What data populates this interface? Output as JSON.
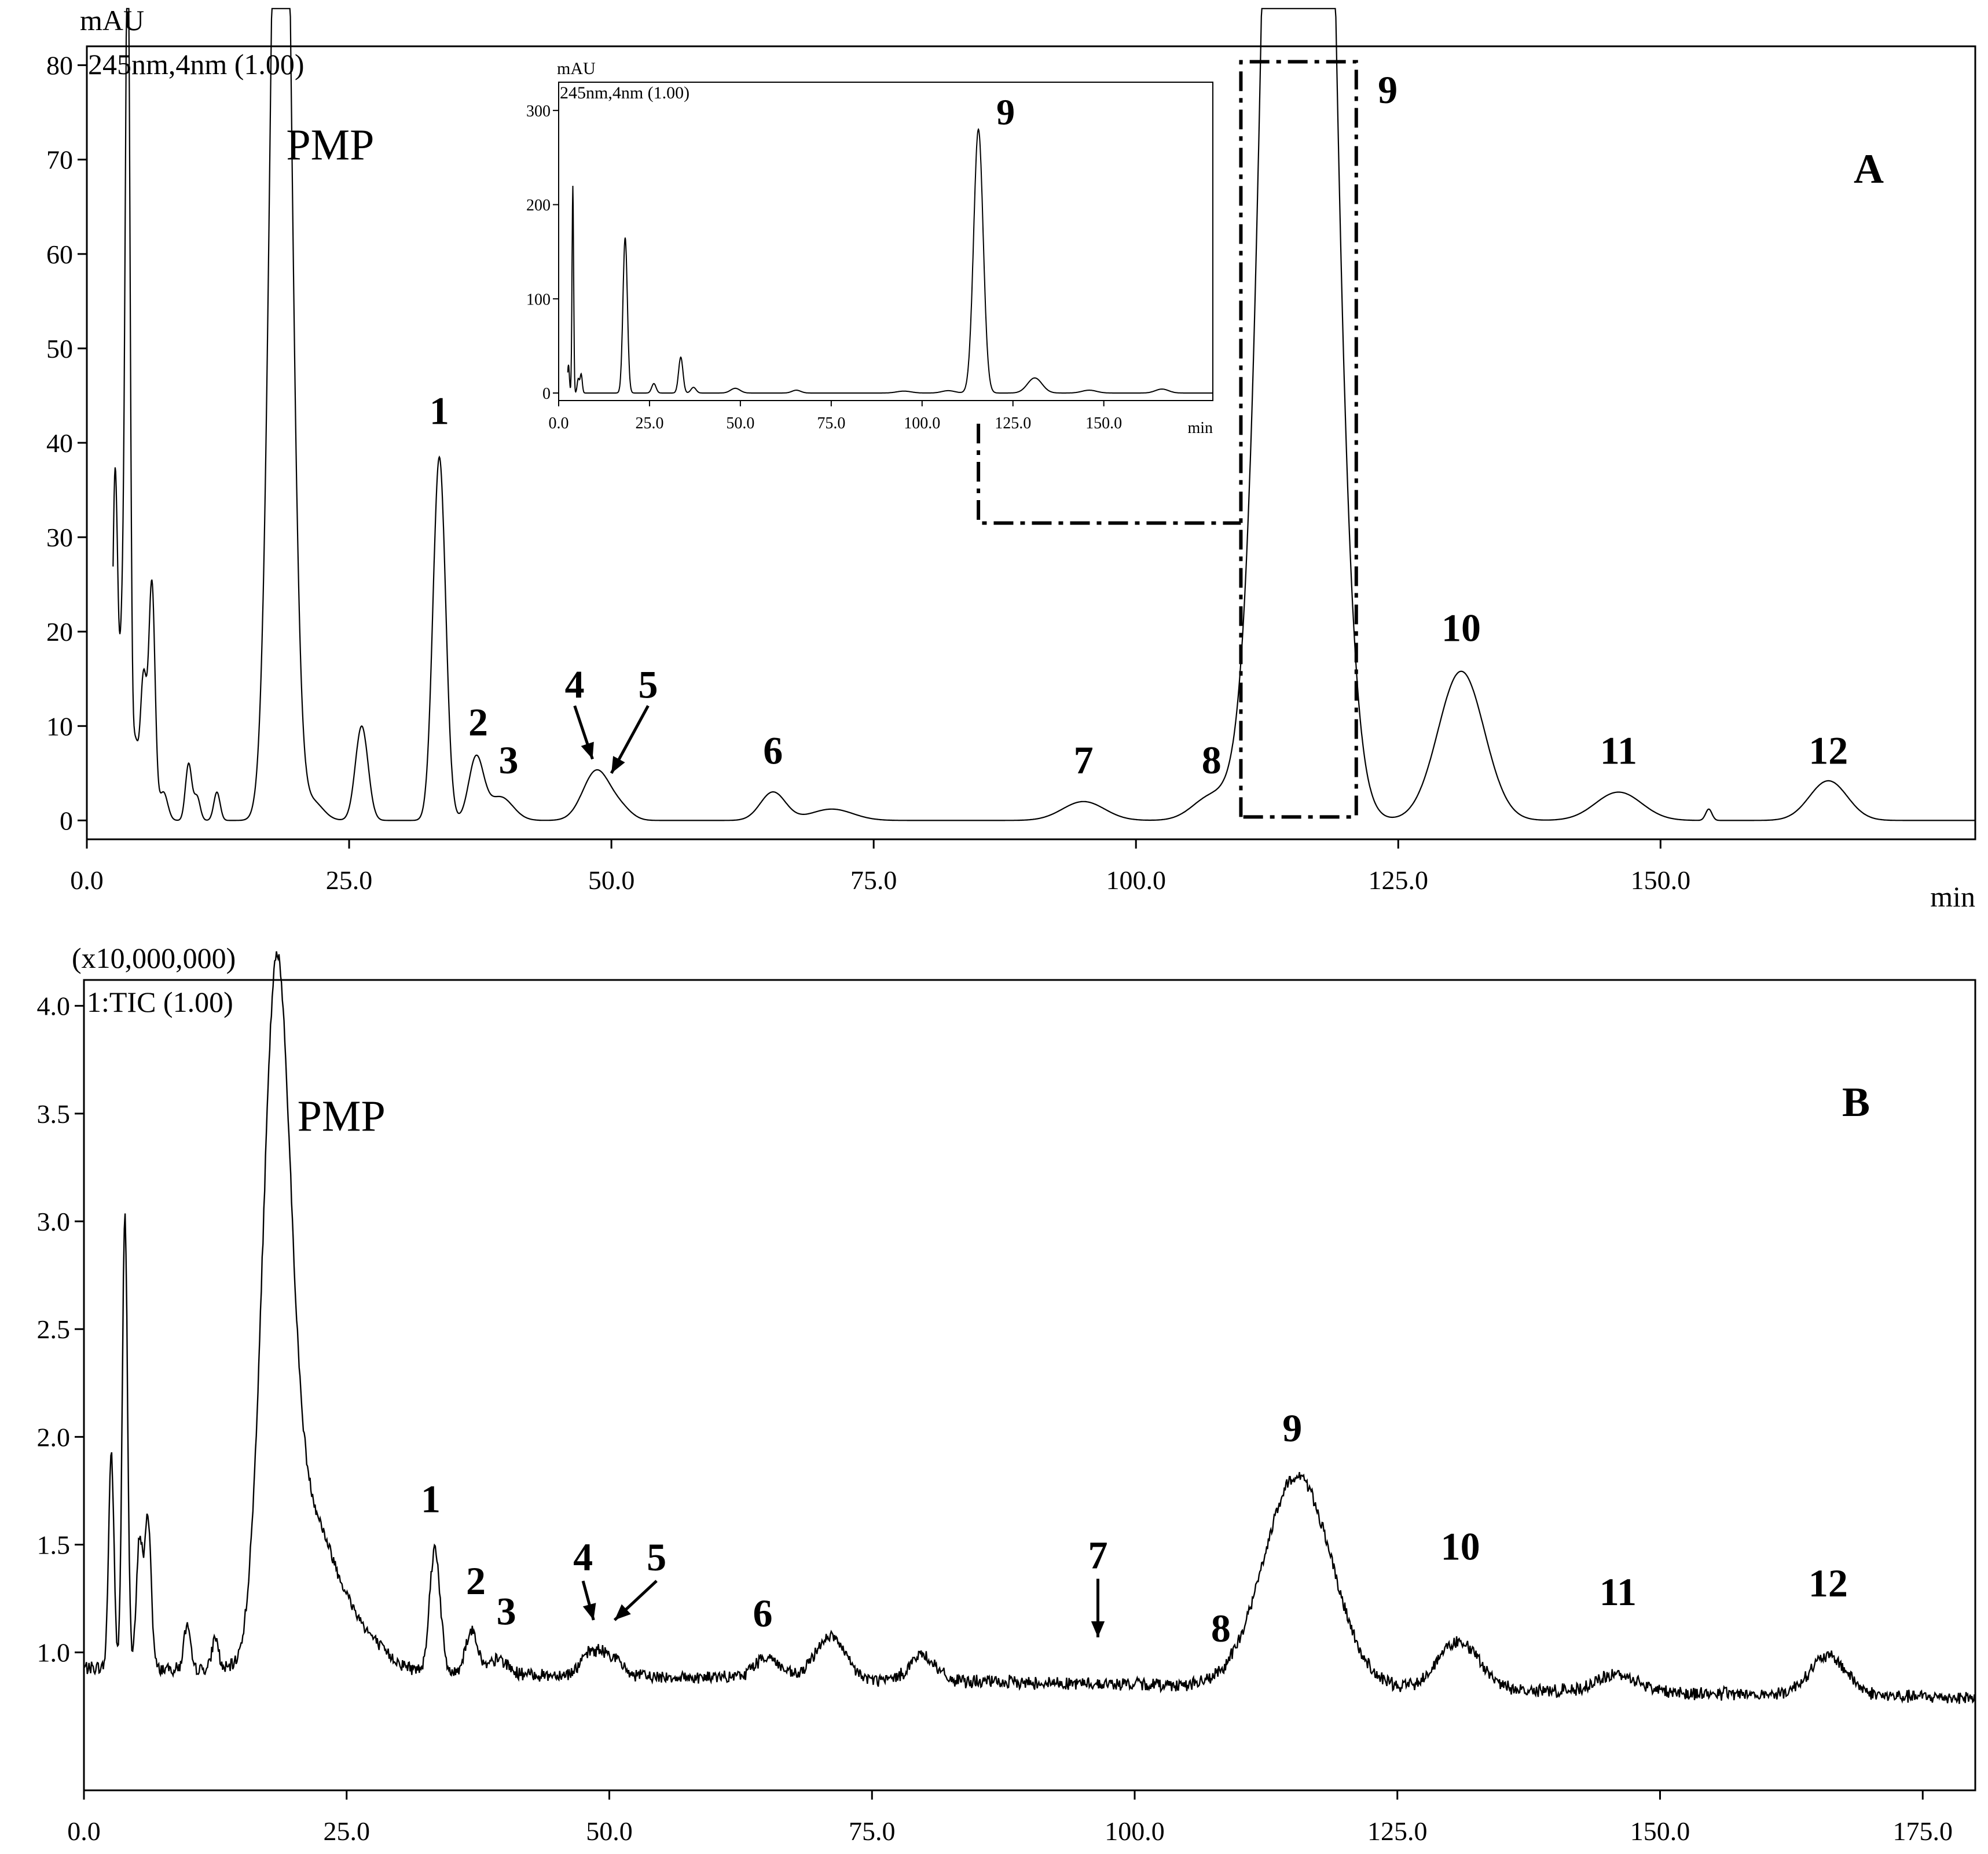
{
  "chart_data": [
    {
      "panel": "A",
      "type": "line",
      "panel_label": "A",
      "y_unit_label": "mAU",
      "trace_label": "245nm,4nm (1.00)",
      "x_unit_label": "min",
      "xlim": [
        0,
        180
      ],
      "ylim": [
        -2,
        82
      ],
      "x_ticks": [
        "0.0",
        "25.0",
        "50.0",
        "75.0",
        "100.0",
        "125.0",
        "150.0"
      ],
      "y_ticks": [
        "0",
        "10",
        "20",
        "30",
        "40",
        "50",
        "60",
        "70",
        "80"
      ],
      "x_tick_values": [
        0,
        25,
        50,
        75,
        100,
        125,
        150
      ],
      "y_tick_values": [
        0,
        10,
        20,
        30,
        40,
        50,
        60,
        70,
        80
      ],
      "baseline": 0,
      "peaks": [
        {
          "label": "",
          "x": 2.7,
          "y": 37,
          "w": 0.25
        },
        {
          "label": "",
          "x": 3.4,
          "y": 20,
          "w": 0.25
        },
        {
          "label": "",
          "x": 3.9,
          "y": 95,
          "w": 0.22
        },
        {
          "label": "",
          "x": 4.6,
          "y": 8,
          "w": 0.3
        },
        {
          "label": "",
          "x": 5.4,
          "y": 15,
          "w": 0.3
        },
        {
          "label": "",
          "x": 6.2,
          "y": 25,
          "w": 0.3
        },
        {
          "label": "",
          "x": 7.3,
          "y": 3,
          "w": 0.4
        },
        {
          "label": "",
          "x": 9.7,
          "y": 6,
          "w": 0.3
        },
        {
          "label": "",
          "x": 10.5,
          "y": 2.5,
          "w": 0.3
        },
        {
          "label": "",
          "x": 12.4,
          "y": 3,
          "w": 0.3
        },
        {
          "label": "PMP",
          "x": 18.5,
          "y": 140,
          "w": 0.9
        },
        {
          "label": "",
          "x": 21.5,
          "y": 2,
          "w": 1.0
        },
        {
          "label": "",
          "x": 26.2,
          "y": 10,
          "w": 0.6
        },
        {
          "label": "1",
          "x": 33.6,
          "y": 38.5,
          "w": 0.6
        },
        {
          "label": "2",
          "x": 37.1,
          "y": 6.5,
          "w": 0.7
        },
        {
          "label": "3",
          "x": 39.4,
          "y": 2.5,
          "w": 1.2
        },
        {
          "label": "4",
          "x": 48.6,
          "y": 5.3,
          "w": 1.3
        },
        {
          "label": "5",
          "x": 51.0,
          "y": 1.0,
          "w": 1.0
        },
        {
          "label": "6",
          "x": 65.4,
          "y": 3.0,
          "w": 1.2
        },
        {
          "label": "",
          "x": 71.0,
          "y": 1.2,
          "w": 2.0
        },
        {
          "label": "7",
          "x": 95.0,
          "y": 2.0,
          "w": 2.0
        },
        {
          "label": "8",
          "x": 107.2,
          "y": 2.5,
          "w": 1.8
        },
        {
          "label": "9",
          "x": 115.5,
          "y": 280,
          "w": 2.3
        },
        {
          "label": "10",
          "x": 131.0,
          "y": 15.8,
          "w": 2.2
        },
        {
          "label": "11",
          "x": 146.0,
          "y": 3.0,
          "w": 2.2
        },
        {
          "label": "",
          "x": 154.6,
          "y": 1.2,
          "w": 0.3
        },
        {
          "label": "12",
          "x": 166.0,
          "y": 4.2,
          "w": 1.8
        }
      ],
      "annotations": [
        {
          "text": "PMP",
          "x": 19,
          "y": 70
        },
        {
          "text": "1",
          "x": 33.6,
          "y": 42
        },
        {
          "text": "2",
          "x": 37.3,
          "y": 9
        },
        {
          "text": "3",
          "x": 40.2,
          "y": 5
        },
        {
          "text": "4",
          "x": 46.5,
          "y": 13,
          "arrow_to": [
            48.2,
            6.5
          ]
        },
        {
          "text": "5",
          "x": 53.5,
          "y": 13,
          "arrow_to": [
            50,
            5
          ]
        },
        {
          "text": "6",
          "x": 65.4,
          "y": 6
        },
        {
          "text": "7",
          "x": 95.0,
          "y": 5
        },
        {
          "text": "8",
          "x": 107.2,
          "y": 5
        },
        {
          "text": "9",
          "x": 124,
          "y": 76
        },
        {
          "text": "10",
          "x": 131.0,
          "y": 19
        },
        {
          "text": "11",
          "x": 146.0,
          "y": 6
        },
        {
          "text": "12",
          "x": 166.0,
          "y": 6
        }
      ],
      "inset": {
        "type": "line",
        "y_unit_label": "mAU",
        "trace_label": "245nm,4nm (1.00)",
        "x_unit_label": "min",
        "xlim": [
          0,
          180
        ],
        "ylim": [
          -8,
          330
        ],
        "x_ticks": [
          "0.0",
          "25.0",
          "50.0",
          "75.0",
          "100.0",
          "125.0",
          "150.0"
        ],
        "x_tick_values": [
          0,
          25,
          50,
          75,
          100,
          125,
          150
        ],
        "y_ticks": [
          "0",
          "100",
          "200",
          "300"
        ],
        "y_tick_values": [
          0,
          100,
          200,
          300
        ],
        "peak_label": "9",
        "peak_label_x": 123,
        "peak_label_y": 285
      },
      "zoom_box": {
        "x_range": [
          110,
          121
        ],
        "y_range": [
          0,
          80
        ]
      }
    },
    {
      "panel": "B",
      "type": "line",
      "panel_label": "B",
      "y_unit_label": "(x10,000,000)",
      "trace_label": "1:TIC (1.00)",
      "xlim": [
        0,
        180
      ],
      "ylim": [
        0.36,
        4.12
      ],
      "x_ticks": [
        "0.0",
        "25.0",
        "50.0",
        "75.0",
        "100.0",
        "125.0",
        "150.0",
        "175.0"
      ],
      "x_tick_values": [
        0,
        25,
        50,
        75,
        100,
        125,
        150,
        175
      ],
      "y_ticks": [
        "1.0",
        "1.5",
        "2.0",
        "2.5",
        "3.0",
        "3.5",
        "4.0"
      ],
      "y_tick_values": [
        1.0,
        1.5,
        2.0,
        2.5,
        3.0,
        3.5,
        4.0
      ],
      "baseline_start": 0.93,
      "baseline_end": 0.79,
      "noise": 0.035,
      "peaks": [
        {
          "label": "",
          "x": 2.6,
          "y": 1.0,
          "w": 0.25
        },
        {
          "label": "",
          "x": 3.9,
          "y": 2.1,
          "w": 0.25
        },
        {
          "label": "",
          "x": 5.3,
          "y": 0.6,
          "w": 0.3
        },
        {
          "label": "",
          "x": 6.1,
          "y": 0.7,
          "w": 0.3
        },
        {
          "label": "",
          "x": 9.8,
          "y": 0.2,
          "w": 0.3
        },
        {
          "label": "",
          "x": 12.5,
          "y": 0.15,
          "w": 0.3
        },
        {
          "label": "PMP",
          "x": 18.3,
          "y": 3.0,
          "w": 1.3
        },
        {
          "label": "",
          "x": 21.0,
          "y": 0.6,
          "w": 2.2
        },
        {
          "label": "",
          "x": 24.5,
          "y": 0.25,
          "w": 3.0
        },
        {
          "label": "1",
          "x": 33.4,
          "y": 0.58,
          "w": 0.5
        },
        {
          "label": "2",
          "x": 36.9,
          "y": 0.2,
          "w": 0.6
        },
        {
          "label": "3",
          "x": 39.5,
          "y": 0.07,
          "w": 0.8
        },
        {
          "label": "4",
          "x": 48.3,
          "y": 0.1,
          "w": 1.0
        },
        {
          "label": "5",
          "x": 50.2,
          "y": 0.08,
          "w": 1.0
        },
        {
          "label": "6",
          "x": 65.0,
          "y": 0.1,
          "w": 1.2
        },
        {
          "label": "",
          "x": 71.0,
          "y": 0.2,
          "w": 1.4
        },
        {
          "label": "",
          "x": 79.8,
          "y": 0.12,
          "w": 1.2
        },
        {
          "label": "9",
          "x": 115.5,
          "y": 0.98,
          "w": 3.2
        },
        {
          "label": "10",
          "x": 130.8,
          "y": 0.22,
          "w": 2.0
        },
        {
          "label": "11",
          "x": 146.0,
          "y": 0.08,
          "w": 2.0
        },
        {
          "label": "12",
          "x": 166.0,
          "y": 0.18,
          "w": 1.8
        }
      ],
      "annotations": [
        {
          "text": "PMP",
          "x": 24.5,
          "y": 3.42
        },
        {
          "text": "1",
          "x": 33.0,
          "y": 1.65
        },
        {
          "text": "2",
          "x": 37.3,
          "y": 1.27
        },
        {
          "text": "3",
          "x": 40.2,
          "y": 1.13
        },
        {
          "text": "4",
          "x": 47.5,
          "y": 1.38,
          "arrow_to": [
            48.5,
            1.15
          ]
        },
        {
          "text": "5",
          "x": 54.5,
          "y": 1.38,
          "arrow_to": [
            50.5,
            1.15
          ]
        },
        {
          "text": "6",
          "x": 64.6,
          "y": 1.12
        },
        {
          "text": "7",
          "x": 96.5,
          "y": 1.39,
          "arrow_to": [
            96.5,
            1.07
          ]
        },
        {
          "text": "8",
          "x": 108.2,
          "y": 1.05
        },
        {
          "text": "9",
          "x": 115.0,
          "y": 1.98
        },
        {
          "text": "10",
          "x": 131.0,
          "y": 1.43
        },
        {
          "text": "11",
          "x": 146.0,
          "y": 1.22
        },
        {
          "text": "12",
          "x": 166.0,
          "y": 1.26
        }
      ]
    }
  ]
}
